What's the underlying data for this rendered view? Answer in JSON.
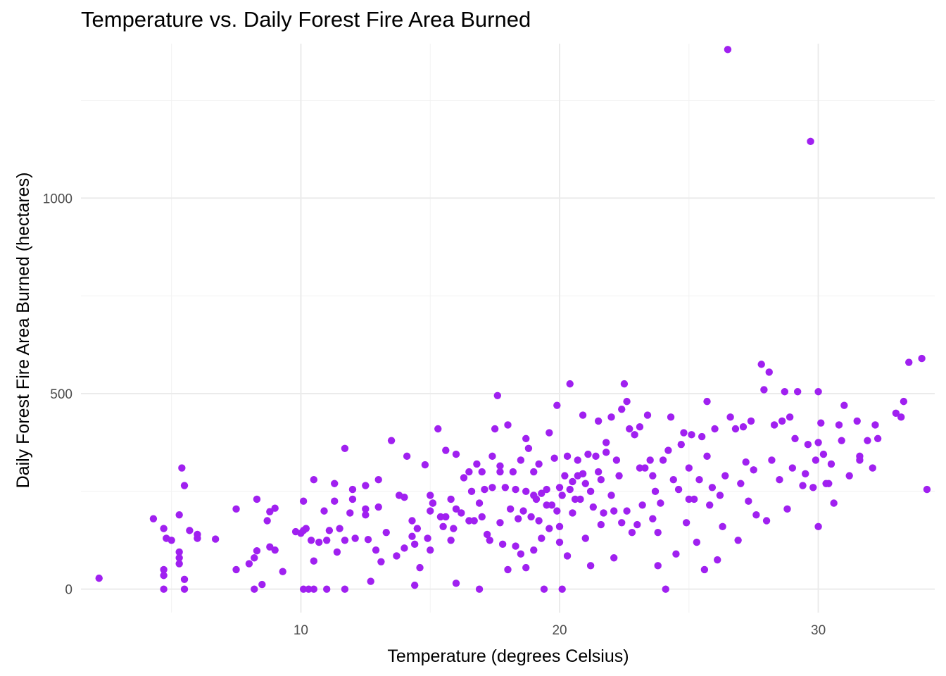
{
  "chart_data": {
    "type": "scatter",
    "title": "Temperature vs. Daily Forest Fire Area Burned",
    "xlabel": "Temperature (degrees Celsius)",
    "ylabel": "Daily Forest Fire Area Burned (hectares)",
    "xlim": [
      1.5,
      34.5
    ],
    "ylim": [
      -60,
      1395
    ],
    "x_ticks": [
      10,
      20,
      30
    ],
    "x_tick_labels": [
      "10",
      "20",
      "30"
    ],
    "y_ticks": [
      0,
      500,
      1000
    ],
    "y_tick_labels": [
      "0",
      "500",
      "1000"
    ],
    "grid": true,
    "legend": "none",
    "point_color": "#a020f0",
    "points": [
      [
        2.2,
        28
      ],
      [
        4.3,
        180
      ],
      [
        4.7,
        155
      ],
      [
        4.7,
        50
      ],
      [
        4.8,
        130
      ],
      [
        4.7,
        35
      ],
      [
        4.7,
        0
      ],
      [
        5.0,
        125
      ],
      [
        5.3,
        190
      ],
      [
        5.3,
        80
      ],
      [
        5.3,
        65
      ],
      [
        5.3,
        95
      ],
      [
        5.4,
        310
      ],
      [
        5.5,
        265
      ],
      [
        5.5,
        25
      ],
      [
        5.5,
        0
      ],
      [
        5.7,
        150
      ],
      [
        6.0,
        140
      ],
      [
        6.0,
        130
      ],
      [
        6.7,
        128
      ],
      [
        7.5,
        205
      ],
      [
        7.5,
        50
      ],
      [
        8.0,
        65
      ],
      [
        8.2,
        80
      ],
      [
        8.2,
        0
      ],
      [
        8.3,
        230
      ],
      [
        8.3,
        98
      ],
      [
        8.5,
        12
      ],
      [
        8.7,
        175
      ],
      [
        8.8,
        198
      ],
      [
        8.8,
        108
      ],
      [
        9.0,
        100
      ],
      [
        9.0,
        207
      ],
      [
        9.3,
        45
      ],
      [
        9.8,
        147
      ],
      [
        10.0,
        143
      ],
      [
        10.1,
        225
      ],
      [
        10.1,
        150
      ],
      [
        10.1,
        0
      ],
      [
        10.2,
        155
      ],
      [
        10.3,
        0
      ],
      [
        10.4,
        125
      ],
      [
        10.5,
        72
      ],
      [
        10.5,
        280
      ],
      [
        10.5,
        0
      ],
      [
        10.7,
        120
      ],
      [
        10.9,
        200
      ],
      [
        11.0,
        125
      ],
      [
        11.0,
        0
      ],
      [
        11.1,
        150
      ],
      [
        11.3,
        225
      ],
      [
        11.3,
        270
      ],
      [
        11.4,
        95
      ],
      [
        11.5,
        155
      ],
      [
        11.7,
        360
      ],
      [
        11.7,
        0
      ],
      [
        11.7,
        125
      ],
      [
        11.9,
        195
      ],
      [
        12.0,
        255
      ],
      [
        12.0,
        230
      ],
      [
        12.1,
        130
      ],
      [
        12.5,
        190
      ],
      [
        12.5,
        265
      ],
      [
        12.5,
        205
      ],
      [
        12.6,
        127
      ],
      [
        12.7,
        20
      ],
      [
        12.9,
        100
      ],
      [
        13.0,
        210
      ],
      [
        13.0,
        280
      ],
      [
        13.1,
        70
      ],
      [
        13.3,
        145
      ],
      [
        13.5,
        380
      ],
      [
        13.7,
        85
      ],
      [
        13.8,
        240
      ],
      [
        14.0,
        105
      ],
      [
        14.0,
        235
      ],
      [
        14.1,
        340
      ],
      [
        14.3,
        175
      ],
      [
        14.3,
        135
      ],
      [
        14.4,
        115
      ],
      [
        14.4,
        10
      ],
      [
        14.5,
        155
      ],
      [
        14.6,
        55
      ],
      [
        14.8,
        318
      ],
      [
        14.9,
        130
      ],
      [
        15.0,
        100
      ],
      [
        15.0,
        200
      ],
      [
        15.0,
        240
      ],
      [
        15.1,
        220
      ],
      [
        15.1,
        220
      ],
      [
        15.3,
        410
      ],
      [
        15.4,
        185
      ],
      [
        15.5,
        160
      ],
      [
        15.6,
        355
      ],
      [
        15.6,
        185
      ],
      [
        15.8,
        230
      ],
      [
        15.8,
        125
      ],
      [
        15.9,
        155
      ],
      [
        16.0,
        345
      ],
      [
        16.0,
        205
      ],
      [
        16.0,
        15
      ],
      [
        16.2,
        195
      ],
      [
        16.3,
        285
      ],
      [
        16.5,
        175
      ],
      [
        16.5,
        300
      ],
      [
        16.6,
        250
      ],
      [
        16.7,
        175
      ],
      [
        16.8,
        320
      ],
      [
        16.9,
        220
      ],
      [
        16.9,
        0
      ],
      [
        17.0,
        185
      ],
      [
        17.0,
        300
      ],
      [
        17.1,
        255
      ],
      [
        17.2,
        140
      ],
      [
        17.3,
        125
      ],
      [
        17.4,
        340
      ],
      [
        17.4,
        260
      ],
      [
        17.5,
        410
      ],
      [
        17.6,
        495
      ],
      [
        17.7,
        315
      ],
      [
        17.7,
        300
      ],
      [
        17.7,
        170
      ],
      [
        17.8,
        115
      ],
      [
        17.9,
        260
      ],
      [
        18.0,
        420
      ],
      [
        18.0,
        50
      ],
      [
        18.1,
        205
      ],
      [
        18.2,
        300
      ],
      [
        18.3,
        255
      ],
      [
        18.3,
        110
      ],
      [
        18.4,
        180
      ],
      [
        18.5,
        90
      ],
      [
        18.5,
        330
      ],
      [
        18.6,
        200
      ],
      [
        18.7,
        385
      ],
      [
        18.7,
        250
      ],
      [
        18.7,
        55
      ],
      [
        18.8,
        360
      ],
      [
        18.9,
        185
      ],
      [
        19.0,
        300
      ],
      [
        19.0,
        100
      ],
      [
        19.0,
        240
      ],
      [
        19.1,
        230
      ],
      [
        19.2,
        320
      ],
      [
        19.2,
        175
      ],
      [
        19.3,
        130
      ],
      [
        19.3,
        245
      ],
      [
        19.4,
        0
      ],
      [
        19.5,
        255
      ],
      [
        19.5,
        215
      ],
      [
        19.6,
        155
      ],
      [
        19.6,
        400
      ],
      [
        19.7,
        215
      ],
      [
        19.8,
        335
      ],
      [
        19.9,
        200
      ],
      [
        19.9,
        470
      ],
      [
        20.0,
        260
      ],
      [
        20.0,
        120
      ],
      [
        20.0,
        160
      ],
      [
        20.1,
        0
      ],
      [
        20.1,
        240
      ],
      [
        20.2,
        290
      ],
      [
        20.3,
        340
      ],
      [
        20.3,
        85
      ],
      [
        20.4,
        255
      ],
      [
        20.4,
        525
      ],
      [
        20.5,
        195
      ],
      [
        20.5,
        275
      ],
      [
        20.6,
        230
      ],
      [
        20.7,
        330
      ],
      [
        20.7,
        290
      ],
      [
        20.8,
        230
      ],
      [
        20.9,
        295
      ],
      [
        20.9,
        445
      ],
      [
        21.0,
        130
      ],
      [
        21.0,
        270
      ],
      [
        21.1,
        345
      ],
      [
        21.2,
        60
      ],
      [
        21.2,
        250
      ],
      [
        21.3,
        210
      ],
      [
        21.4,
        340
      ],
      [
        21.5,
        300
      ],
      [
        21.5,
        430
      ],
      [
        21.6,
        165
      ],
      [
        21.6,
        280
      ],
      [
        21.7,
        195
      ],
      [
        21.8,
        375
      ],
      [
        21.8,
        350
      ],
      [
        22.0,
        440
      ],
      [
        22.0,
        240
      ],
      [
        22.1,
        80
      ],
      [
        22.1,
        200
      ],
      [
        22.2,
        330
      ],
      [
        22.3,
        290
      ],
      [
        22.4,
        460
      ],
      [
        22.4,
        170
      ],
      [
        22.5,
        525
      ],
      [
        22.6,
        480
      ],
      [
        22.6,
        200
      ],
      [
        22.7,
        410
      ],
      [
        22.8,
        145
      ],
      [
        22.9,
        395
      ],
      [
        23.0,
        165
      ],
      [
        23.1,
        415
      ],
      [
        23.1,
        310
      ],
      [
        23.2,
        215
      ],
      [
        23.3,
        310
      ],
      [
        23.4,
        445
      ],
      [
        23.5,
        330
      ],
      [
        23.6,
        180
      ],
      [
        23.6,
        290
      ],
      [
        23.7,
        250
      ],
      [
        23.8,
        145
      ],
      [
        23.8,
        60
      ],
      [
        23.9,
        220
      ],
      [
        24.0,
        330
      ],
      [
        24.1,
        0
      ],
      [
        24.2,
        355
      ],
      [
        24.3,
        440
      ],
      [
        24.4,
        280
      ],
      [
        24.5,
        90
      ],
      [
        24.6,
        255
      ],
      [
        24.7,
        370
      ],
      [
        24.8,
        400
      ],
      [
        24.9,
        170
      ],
      [
        25.0,
        310
      ],
      [
        25.0,
        230
      ],
      [
        25.1,
        395
      ],
      [
        25.2,
        230
      ],
      [
        25.3,
        120
      ],
      [
        25.4,
        280
      ],
      [
        25.5,
        390
      ],
      [
        25.6,
        50
      ],
      [
        25.7,
        340
      ],
      [
        25.7,
        480
      ],
      [
        25.8,
        215
      ],
      [
        25.9,
        260
      ],
      [
        26.0,
        410
      ],
      [
        26.1,
        75
      ],
      [
        26.2,
        240
      ],
      [
        26.3,
        160
      ],
      [
        26.4,
        290
      ],
      [
        26.5,
        1380
      ],
      [
        26.6,
        440
      ],
      [
        26.8,
        410
      ],
      [
        26.9,
        125
      ],
      [
        27.0,
        270
      ],
      [
        27.1,
        415
      ],
      [
        27.2,
        325
      ],
      [
        27.3,
        225
      ],
      [
        27.4,
        430
      ],
      [
        27.5,
        305
      ],
      [
        27.6,
        190
      ],
      [
        27.8,
        575
      ],
      [
        27.9,
        510
      ],
      [
        28.0,
        175
      ],
      [
        28.1,
        555
      ],
      [
        28.2,
        330
      ],
      [
        28.3,
        420
      ],
      [
        28.5,
        280
      ],
      [
        28.6,
        430
      ],
      [
        28.7,
        505
      ],
      [
        28.8,
        205
      ],
      [
        28.9,
        440
      ],
      [
        29.0,
        310
      ],
      [
        29.1,
        385
      ],
      [
        29.2,
        505
      ],
      [
        29.4,
        265
      ],
      [
        29.5,
        295
      ],
      [
        29.6,
        370
      ],
      [
        29.7,
        1145
      ],
      [
        29.8,
        260
      ],
      [
        29.9,
        330
      ],
      [
        30.0,
        160
      ],
      [
        30.0,
        375
      ],
      [
        30.0,
        505
      ],
      [
        30.1,
        425
      ],
      [
        30.2,
        345
      ],
      [
        30.3,
        270
      ],
      [
        30.4,
        270
      ],
      [
        30.5,
        320
      ],
      [
        30.6,
        220
      ],
      [
        30.8,
        420
      ],
      [
        30.9,
        380
      ],
      [
        31.0,
        470
      ],
      [
        31.2,
        290
      ],
      [
        31.5,
        430
      ],
      [
        31.6,
        340
      ],
      [
        31.6,
        330
      ],
      [
        31.9,
        380
      ],
      [
        32.1,
        310
      ],
      [
        32.2,
        420
      ],
      [
        32.3,
        385
      ],
      [
        33.0,
        450
      ],
      [
        33.2,
        440
      ],
      [
        33.3,
        480
      ],
      [
        33.5,
        580
      ],
      [
        34.0,
        590
      ],
      [
        34.2,
        255
      ]
    ]
  }
}
